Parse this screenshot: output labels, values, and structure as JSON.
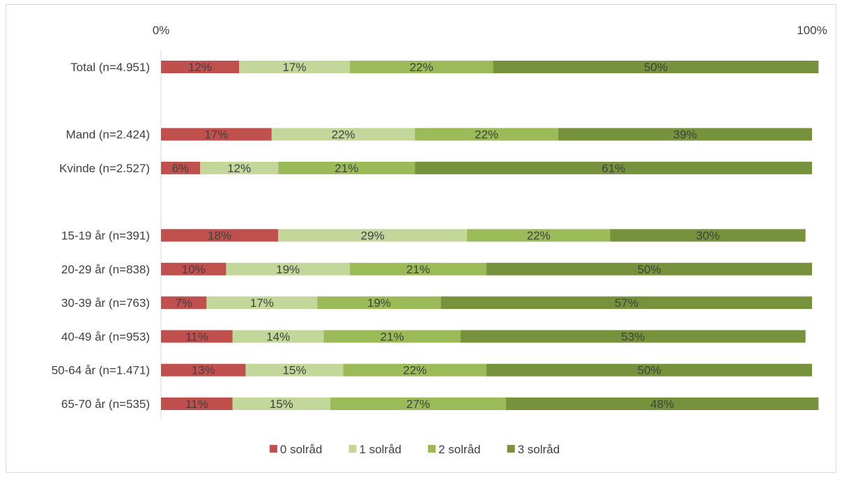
{
  "chart_data": {
    "type": "bar",
    "orientation": "horizontal",
    "stacked": true,
    "stacked_percent": true,
    "xlim": [
      0,
      100
    ],
    "x_ticks": [
      "0%",
      "100%"
    ],
    "grid": false,
    "legend_position": "bottom",
    "categories": [
      "Total (n=4.951)",
      "",
      "Mand (n=2.424)",
      "Kvinde (n=2.527)",
      "",
      "15-19 år (n=391)",
      "20-29 år (n=838)",
      "30-39 år (n=763)",
      "40-49 år (n=953)",
      "50-64 år (n=1.471)",
      "65-70 år (n=535)"
    ],
    "series": [
      {
        "name": "0 solråd",
        "color": "#c0504d",
        "values": [
          12,
          null,
          17,
          6,
          null,
          18,
          10,
          7,
          11,
          13,
          11
        ]
      },
      {
        "name": "1 solråd",
        "color": "#c4d79b",
        "values": [
          17,
          null,
          22,
          12,
          null,
          29,
          19,
          17,
          14,
          15,
          15
        ]
      },
      {
        "name": "2 solråd",
        "color": "#9bbb59",
        "values": [
          22,
          null,
          22,
          21,
          null,
          22,
          21,
          19,
          21,
          22,
          27
        ]
      },
      {
        "name": "3 solråd",
        "color": "#76923c",
        "values": [
          50,
          null,
          39,
          61,
          null,
          30,
          50,
          57,
          53,
          50,
          48
        ]
      }
    ],
    "data_labels": [
      [
        "12%",
        "",
        "17%",
        "6%",
        "",
        "18%",
        "10%",
        "7%",
        "11%",
        "13%",
        "11%"
      ],
      [
        "17%",
        "",
        "22%",
        "12%",
        "",
        "29%",
        "19%",
        "17%",
        "14%",
        "15%",
        "15%"
      ],
      [
        "22%",
        "",
        "22%",
        "21%",
        "",
        "22%",
        "21%",
        "19%",
        "21%",
        "22%",
        "27%"
      ],
      [
        "50%",
        "",
        "39%",
        "61%",
        "",
        "30%",
        "50%",
        "57%",
        "53%",
        "50%",
        "48%"
      ]
    ]
  }
}
